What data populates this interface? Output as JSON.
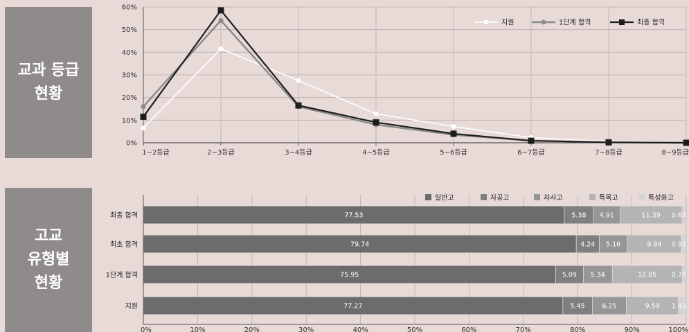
{
  "sections": {
    "grade_title_line1": "교과 등급",
    "grade_title_line2": "현황",
    "type_title_line1": "고교",
    "type_title_line2": "유형별",
    "type_title_line3": "현황"
  },
  "colors": {
    "background": "#e8dad7",
    "label_box": "#8f8b8b",
    "line_apply": "#ffffff",
    "line_stage1": "#8a8a8a",
    "line_final": "#1e1e1e",
    "bar_general": "#6c6c6c",
    "bar_autonomous_public": "#7f7f7f",
    "bar_autonomous_private": "#969696",
    "bar_special_purpose": "#b4b4b4",
    "bar_specialized": "#d4d4d4"
  },
  "chart_data": [
    {
      "type": "line",
      "categories": [
        "1~2등급",
        "2~3등급",
        "3~4등급",
        "4~5등급",
        "5~6등급",
        "6~7등급",
        "7~8등급",
        "8~9등급"
      ],
      "yticks": [
        "60%",
        "50%",
        "40%",
        "30%",
        "20%",
        "10%",
        "0%"
      ],
      "ylim": [
        0,
        60
      ],
      "grid": true,
      "legend": "top-right",
      "series": [
        {
          "name": "지원",
          "marker": "circle",
          "values": [
            6.5,
            41.5,
            27.5,
            12.8,
            7.2,
            2.3,
            0.6,
            0.2
          ]
        },
        {
          "name": "1단계 합격",
          "marker": "circle",
          "values": [
            16,
            54,
            16,
            8,
            3.5,
            0.9,
            0.2,
            0
          ]
        },
        {
          "name": "최종 합격",
          "marker": "square",
          "values": [
            11.5,
            58.5,
            16.5,
            9,
            4,
            0.9,
            0.2,
            0
          ]
        }
      ]
    },
    {
      "type": "bar",
      "orientation": "horizontal",
      "stacked": true,
      "categories": [
        "최종 합격",
        "최초 합격",
        "1단계 합격",
        "지원"
      ],
      "xticks": [
        "0%",
        "10%",
        "20%",
        "30%",
        "40%",
        "50%",
        "60%",
        "70%",
        "80%",
        "90%",
        "100%"
      ],
      "xlim": [
        0,
        100
      ],
      "legend": "top-right",
      "series": [
        {
          "name": "일반고",
          "values": [
            77.53,
            79.74,
            75.95,
            77.27
          ],
          "labels": [
            "77.53",
            "79.74",
            "75.95",
            "77.27"
          ]
        },
        {
          "name": "자공고",
          "values": [
            5.38,
            4.24,
            5.09,
            5.45
          ],
          "labels": [
            "5.38",
            "4.24",
            "5.09",
            "5.45"
          ]
        },
        {
          "name": "자사고",
          "values": [
            4.91,
            5.16,
            5.34,
            6.25
          ],
          "labels": [
            "4.91",
            "5.16",
            "5.34",
            "6.25"
          ]
        },
        {
          "name": "특목고",
          "values": [
            11.39,
            9.94,
            12.85,
            9.59
          ],
          "labels": [
            "11.39",
            "9.94",
            "12.85",
            "9.59"
          ]
        },
        {
          "name": "특성화고",
          "values": [
            0.63,
            0.92,
            0.77,
            1.43
          ],
          "labels": [
            "0.63",
            "0.92",
            "0.77",
            "1.43"
          ]
        }
      ]
    }
  ]
}
